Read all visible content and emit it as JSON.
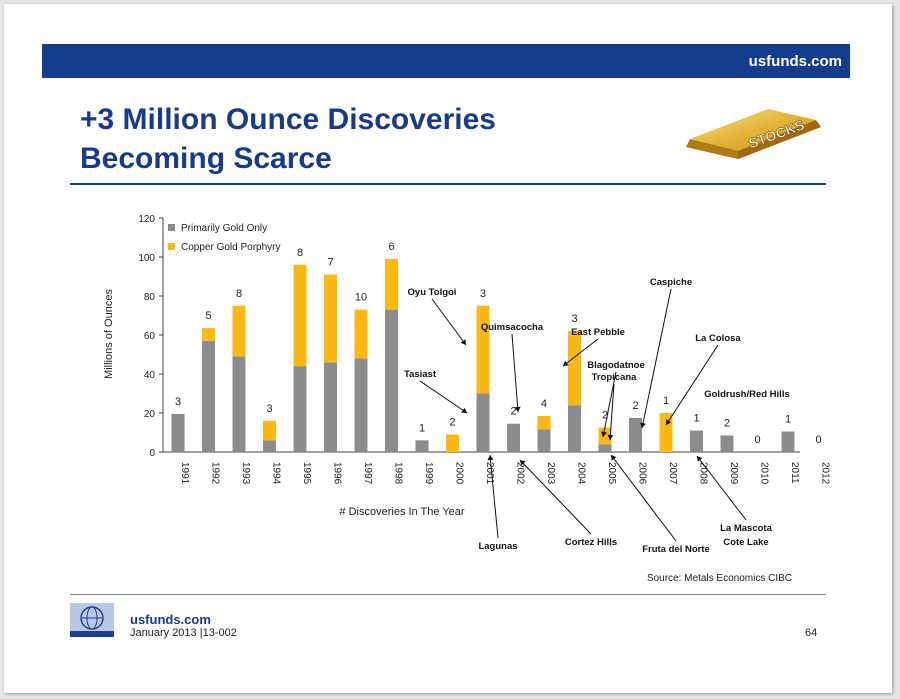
{
  "header": {
    "site": "usfunds.com"
  },
  "slide_title": {
    "line1": "+3 Million Ounce Discoveries",
    "line2": "Becoming Scarce"
  },
  "badge": {
    "label": "STOCKS"
  },
  "footer": {
    "site": "usfunds.com",
    "date": "January 2013 |13-002",
    "page": "64"
  },
  "colors": {
    "navy": "#143c8c",
    "gold": "#fdb913",
    "gray": "#8c8c8c"
  },
  "chart_data": {
    "type": "bar",
    "stacked": true,
    "title": "",
    "xlabel": "# Discoveries In The Year",
    "ylabel": "Millions of Ounces",
    "ylim": [
      0,
      120
    ],
    "yticks": [
      0,
      20,
      40,
      60,
      80,
      100,
      120
    ],
    "legend_position": "top-left",
    "categories": [
      "1991",
      "1992",
      "1993",
      "1994",
      "1995",
      "1996",
      "1997",
      "1998",
      "1999",
      "2000",
      "2001",
      "2002",
      "2003",
      "2004",
      "2005",
      "2006",
      "2007",
      "2008",
      "2009",
      "2010",
      "2011",
      "2012"
    ],
    "series": [
      {
        "name": "Primarily Gold Only",
        "color": "#8c8c8c",
        "values": [
          19.5,
          57,
          49,
          6,
          44,
          46,
          48,
          73,
          6,
          0,
          30,
          14.5,
          11.5,
          24,
          4,
          17.5,
          0,
          11,
          8.5,
          0,
          10.5,
          0
        ]
      },
      {
        "name": "Copper Gold Porphyry",
        "color": "#fdb913",
        "values": [
          0,
          6.5,
          26,
          10,
          52,
          45,
          25,
          26,
          0,
          9,
          45,
          0,
          7,
          38,
          8.5,
          0,
          20,
          0,
          0,
          0,
          0,
          0
        ]
      }
    ],
    "counts": [
      "3",
      "5",
      "8",
      "3",
      "8",
      "7",
      "10",
      "6",
      "1",
      "2",
      "3",
      "2",
      "4",
      "3",
      "2",
      "2",
      "1",
      "1",
      "2",
      "0",
      "1",
      "0"
    ],
    "annotations": [
      "Oyu Tolgoi",
      "Tasiast",
      "Quimsacocha",
      "East Pebble",
      "Blagodatnoe",
      "Tropicana",
      "Caspiche",
      "La Colosa",
      "Goldrush/Red Hills",
      "Lagunas",
      "Cortez Hills",
      "Fruta del Norte",
      "La Mascota",
      "Cote Lake"
    ],
    "source": "Source: Metals Economics CIBC"
  }
}
